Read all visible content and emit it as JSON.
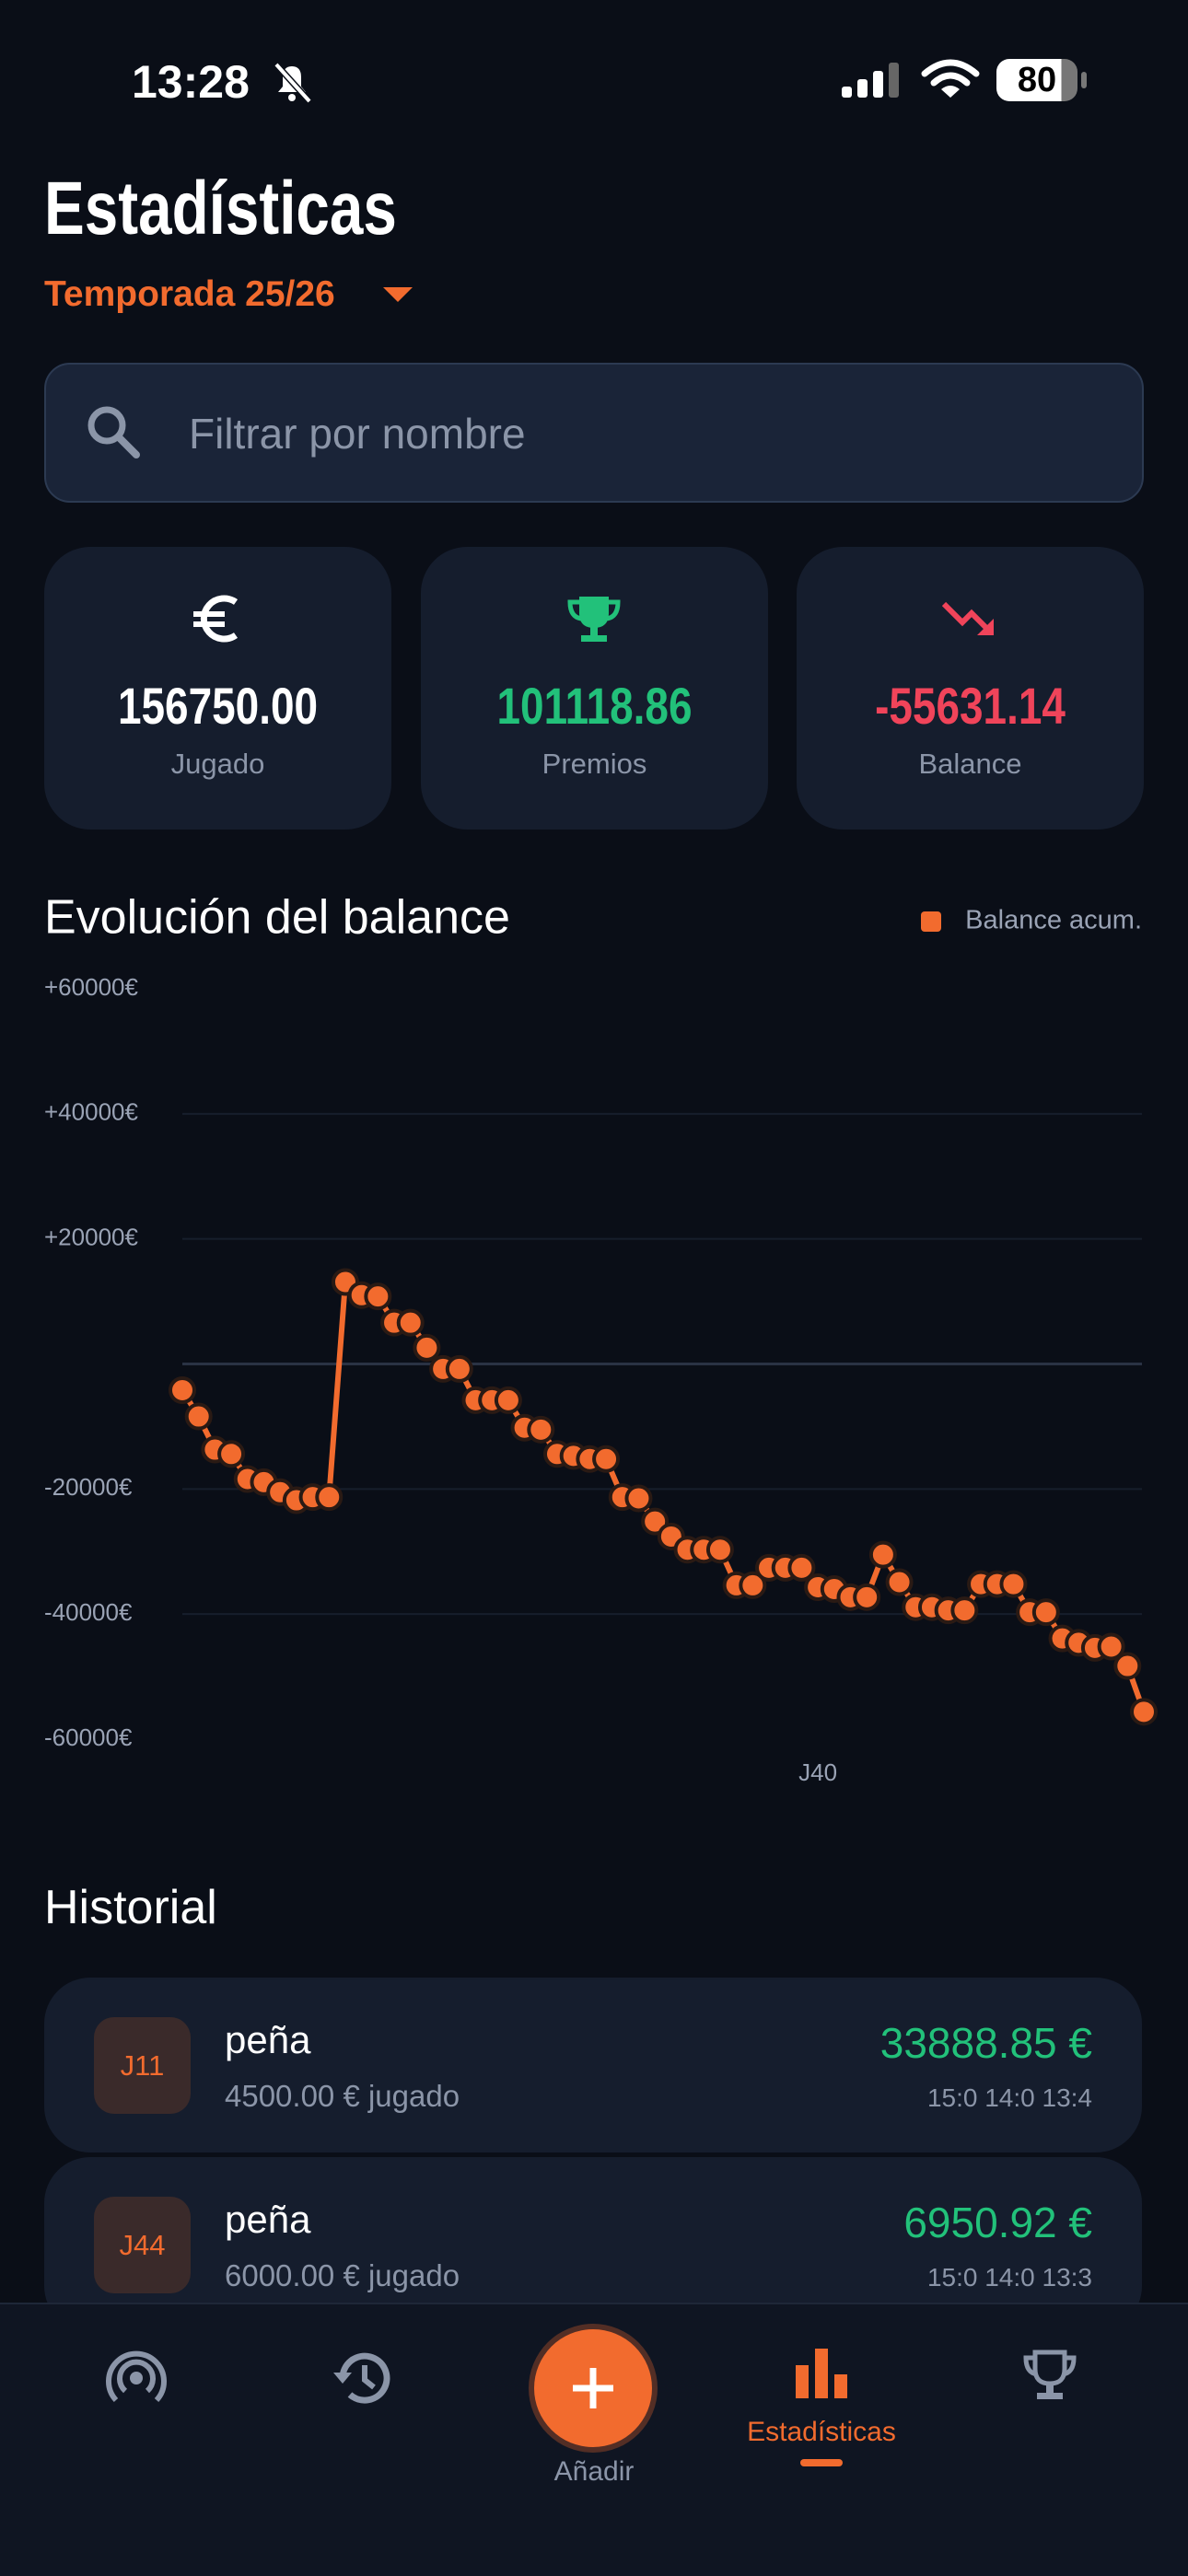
{
  "status": {
    "time": "13:28",
    "battery": "80"
  },
  "header": {
    "title": "Estadísticas",
    "season": "Temporada 25/26"
  },
  "search": {
    "placeholder": "Filtrar por nombre"
  },
  "stats": [
    {
      "value": "156750.00",
      "label": "Jugado"
    },
    {
      "value": "101118.86",
      "label": "Premios"
    },
    {
      "value": "-55631.14",
      "label": "Balance"
    }
  ],
  "chart_data": {
    "type": "line",
    "title": "Evolución del balance",
    "categories": [
      null,
      null,
      null,
      null,
      null,
      null,
      null,
      null,
      null,
      null,
      null,
      null,
      null,
      null,
      null,
      null,
      null,
      null,
      null,
      null,
      null,
      null,
      null,
      null,
      null,
      null,
      null,
      null,
      null,
      null,
      null,
      null,
      null,
      null,
      null,
      null,
      null,
      null,
      null,
      "J40",
      null,
      null,
      null,
      null,
      null,
      null,
      null,
      null,
      null,
      null,
      null,
      null,
      null,
      null,
      null,
      null,
      null,
      null,
      null,
      null
    ],
    "series": [
      {
        "name": "Balance acum.",
        "color": "#f26b2e",
        "values": [
          -4200,
          -8400,
          -13700,
          -14400,
          -18400,
          -18900,
          -20500,
          -21800,
          -21300,
          -21300,
          13100,
          11000,
          10800,
          6600,
          6600,
          2600,
          -800,
          -800,
          -5800,
          -5800,
          -5800,
          -10200,
          -10500,
          -14400,
          -14700,
          -15200,
          -15200,
          -21300,
          -21500,
          -25200,
          -27600,
          -29700,
          -29700,
          -29700,
          -35400,
          -35400,
          -32600,
          -32600,
          -32600,
          -35700,
          -36000,
          -37300,
          -37300,
          -30500,
          -34900,
          -38900,
          -38900,
          -39400,
          -39400,
          -35200,
          -35200,
          -35200,
          -39700,
          -39700,
          -43900,
          -44600,
          -45400,
          -45200,
          -48300,
          -55631.14
        ]
      }
    ],
    "ylim": [
      -60000,
      60000
    ],
    "yticks": [
      {
        "value": -60000,
        "label": "-60000€"
      },
      {
        "value": -40000,
        "label": "-40000€"
      },
      {
        "value": -20000,
        "label": "-20000€"
      },
      {
        "value": 20000,
        "label": "+20000€"
      },
      {
        "value": 40000,
        "label": "+40000€"
      },
      {
        "value": 60000,
        "label": "+60000€"
      }
    ],
    "grid": true
  },
  "history": {
    "title": "Historial",
    "items": [
      {
        "badge": "J11",
        "name": "peña",
        "played": "4500.00 € jugado",
        "amount": "33888.85 €",
        "time": "15:0 14:0 13:4"
      },
      {
        "badge": "J44",
        "name": "peña",
        "played": "6000.00 € jugado",
        "amount": "6950.92 €",
        "time": "15:0 14:0 13:3"
      }
    ]
  },
  "nav": {
    "add": "Añadir",
    "stats": "Estadísticas"
  }
}
